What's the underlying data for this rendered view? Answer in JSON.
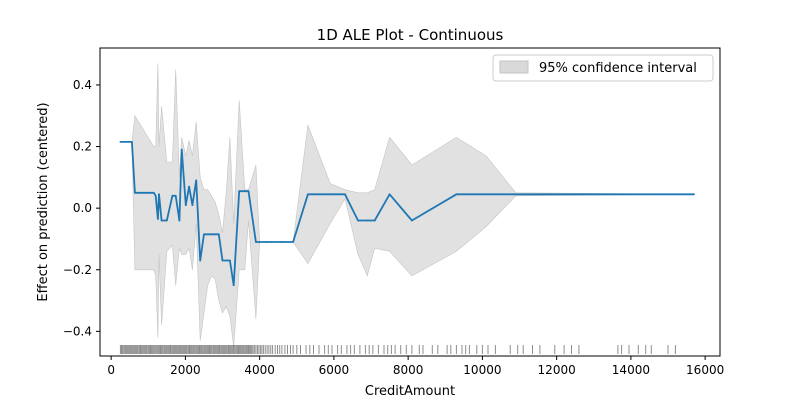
{
  "chart_data": {
    "type": "line",
    "title": "1D ALE Plot - Continuous",
    "xlabel": "CreditAmount",
    "ylabel": "Effect on prediction (centered)",
    "xlim": [
      -300,
      16400
    ],
    "ylim": [
      -0.48,
      0.52
    ],
    "x_ticks": [
      0,
      2000,
      4000,
      6000,
      8000,
      10000,
      12000,
      14000,
      16000
    ],
    "x_tick_labels": [
      "0",
      "2000",
      "4000",
      "6000",
      "8000",
      "10000",
      "12000",
      "14000",
      "16000"
    ],
    "y_ticks": [
      -0.4,
      -0.2,
      0.0,
      0.2,
      0.4
    ],
    "y_tick_labels": [
      "−0.4",
      "−0.2",
      "0.0",
      "0.2",
      "0.4"
    ],
    "grid": false,
    "legend": {
      "placement": "top-right",
      "entries": [
        {
          "label": "95% confidence interval",
          "kind": "band"
        }
      ]
    },
    "colors": {
      "line": "#1f77b4",
      "band": "#d9d9d9",
      "band_edge": "#c4c4c4",
      "rug": "#000000"
    },
    "ale": {
      "x": [
        250,
        560,
        640,
        1150,
        1200,
        1260,
        1290,
        1360,
        1500,
        1650,
        1740,
        1840,
        1900,
        2010,
        2100,
        2190,
        2290,
        2400,
        2500,
        2600,
        2700,
        2800,
        2900,
        3000,
        3100,
        3200,
        3300,
        3450,
        3600,
        3700,
        3900,
        4000,
        4200,
        4300,
        4600,
        4900,
        5300,
        5900,
        6300,
        6650,
        6900,
        7100,
        7500,
        8100,
        9300,
        10100,
        10900,
        15700
      ],
      "y": [
        0.215,
        0.215,
        0.05,
        0.05,
        0.04,
        -0.035,
        0.045,
        -0.04,
        -0.04,
        0.04,
        0.04,
        -0.04,
        0.19,
        0.01,
        0.07,
        0.01,
        0.09,
        -0.17,
        -0.085,
        -0.085,
        -0.085,
        -0.085,
        -0.085,
        -0.17,
        -0.17,
        -0.17,
        -0.25,
        0.055,
        0.055,
        0.055,
        -0.11,
        -0.11,
        -0.11,
        -0.11,
        -0.11,
        -0.11,
        0.045,
        0.045,
        0.045,
        -0.04,
        -0.04,
        -0.04,
        0.045,
        -0.04,
        0.045,
        0.045,
        0.045,
        0.045
      ],
      "ci_upper": [
        0.215,
        0.215,
        0.3,
        0.2,
        0.2,
        0.47,
        0.2,
        0.33,
        0.15,
        0.15,
        0.45,
        0.1,
        0.23,
        0.17,
        0.22,
        0.17,
        0.28,
        0.1,
        0.06,
        0.06,
        0.04,
        0.02,
        -0.02,
        -0.08,
        0.05,
        0.23,
        -0.05,
        0.35,
        0.06,
        0.06,
        0.14,
        -0.11,
        -0.11,
        -0.11,
        -0.11,
        -0.11,
        0.27,
        0.08,
        0.06,
        0.05,
        0.05,
        0.06,
        0.23,
        0.14,
        0.23,
        0.17,
        0.05,
        0.045
      ],
      "ci_lower": [
        0.215,
        0.215,
        -0.2,
        -0.2,
        -0.22,
        -0.42,
        -0.15,
        -0.38,
        -0.14,
        -0.12,
        -0.25,
        -0.13,
        -0.15,
        -0.15,
        -0.13,
        -0.2,
        -0.05,
        -0.43,
        -0.34,
        -0.25,
        -0.22,
        -0.23,
        -0.3,
        -0.34,
        -0.32,
        -0.35,
        -0.45,
        -0.2,
        -0.2,
        -0.04,
        -0.36,
        -0.11,
        -0.11,
        -0.11,
        -0.11,
        -0.11,
        -0.18,
        -0.05,
        0.03,
        -0.15,
        -0.22,
        -0.13,
        -0.14,
        -0.22,
        -0.14,
        -0.06,
        0.04,
        0.045
      ]
    },
    "rug_x": [
      250,
      280,
      310,
      340,
      370,
      400,
      430,
      460,
      490,
      520,
      550,
      580,
      610,
      640,
      670,
      700,
      730,
      760,
      790,
      820,
      850,
      880,
      910,
      940,
      970,
      1000,
      1030,
      1060,
      1090,
      1120,
      1150,
      1180,
      1210,
      1240,
      1270,
      1300,
      1330,
      1360,
      1390,
      1420,
      1450,
      1480,
      1510,
      1540,
      1570,
      1600,
      1630,
      1660,
      1690,
      1720,
      1750,
      1780,
      1810,
      1840,
      1870,
      1900,
      1930,
      1960,
      1990,
      2020,
      2050,
      2080,
      2110,
      2140,
      2170,
      2200,
      2230,
      2260,
      2290,
      2320,
      2350,
      2380,
      2410,
      2440,
      2470,
      2500,
      2530,
      2560,
      2590,
      2620,
      2650,
      2680,
      2710,
      2740,
      2770,
      2800,
      2830,
      2860,
      2890,
      2920,
      2950,
      2980,
      3010,
      3040,
      3070,
      3100,
      3130,
      3160,
      3190,
      3220,
      3250,
      3280,
      3310,
      3340,
      3370,
      3400,
      3430,
      3460,
      3490,
      3520,
      3550,
      3580,
      3610,
      3640,
      3670,
      3700,
      3730,
      3760,
      3790,
      3820,
      3860,
      3900,
      3940,
      3980,
      4020,
      4060,
      4100,
      4150,
      4200,
      4250,
      4300,
      4350,
      4420,
      4480,
      4540,
      4600,
      4680,
      4750,
      4830,
      4900,
      5000,
      5100,
      5250,
      5350,
      5450,
      5600,
      5750,
      5850,
      5950,
      6100,
      6200,
      6350,
      6450,
      6550,
      6700,
      6850,
      6950,
      7050,
      7200,
      7350,
      7450,
      7550,
      7650,
      7800,
      7950,
      8100,
      8300,
      8400,
      8650,
      8800,
      9050,
      9150,
      9300,
      9450,
      9550,
      9650,
      9850,
      10000,
      10150,
      10350,
      10750,
      10950,
      11100,
      11350,
      11550,
      11950,
      12200,
      12400,
      12600,
      13650,
      13750,
      13950,
      14200,
      14400,
      14550,
      15000,
      15200
    ]
  }
}
